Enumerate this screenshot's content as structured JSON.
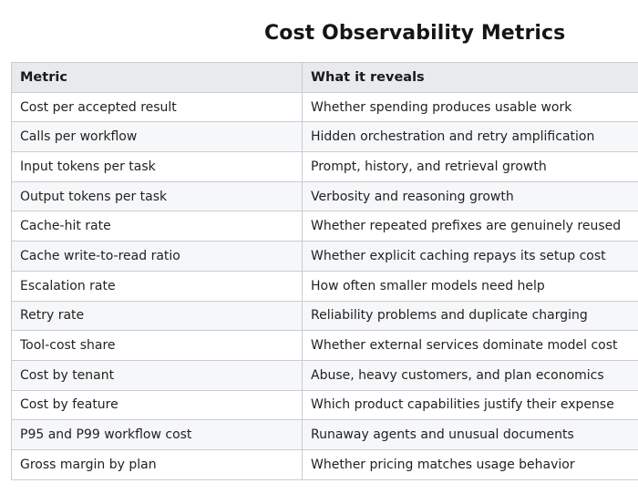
{
  "title": "Cost Observability Metrics",
  "table": {
    "headers": [
      "Metric",
      "What it reveals"
    ],
    "rows": [
      [
        "Cost per accepted result",
        "Whether spending produces usable work"
      ],
      [
        "Calls per workflow",
        "Hidden orchestration and retry amplification"
      ],
      [
        "Input tokens per task",
        "Prompt, history, and retrieval growth"
      ],
      [
        "Output tokens per task",
        "Verbosity and reasoning growth"
      ],
      [
        "Cache-hit rate",
        "Whether repeated prefixes are genuinely reused"
      ],
      [
        "Cache write-to-read ratio",
        "Whether explicit caching repays its setup cost"
      ],
      [
        "Escalation rate",
        "How often smaller models need help"
      ],
      [
        "Retry rate",
        "Reliability problems and duplicate charging"
      ],
      [
        "Tool-cost share",
        "Whether external services dominate model cost"
      ],
      [
        "Cost by tenant",
        "Abuse, heavy customers, and plan economics"
      ],
      [
        "Cost by feature",
        "Which product capabilities justify their expense"
      ],
      [
        "P95 and P99 workflow cost",
        "Runaway agents and unusual documents"
      ],
      [
        "Gross margin by plan",
        "Whether pricing matches usage behavior"
      ]
    ]
  },
  "colors": {
    "header_bg": "#e8eaee",
    "alt_row_bg": "#f6f7f9",
    "border": "#c9ccd2"
  }
}
